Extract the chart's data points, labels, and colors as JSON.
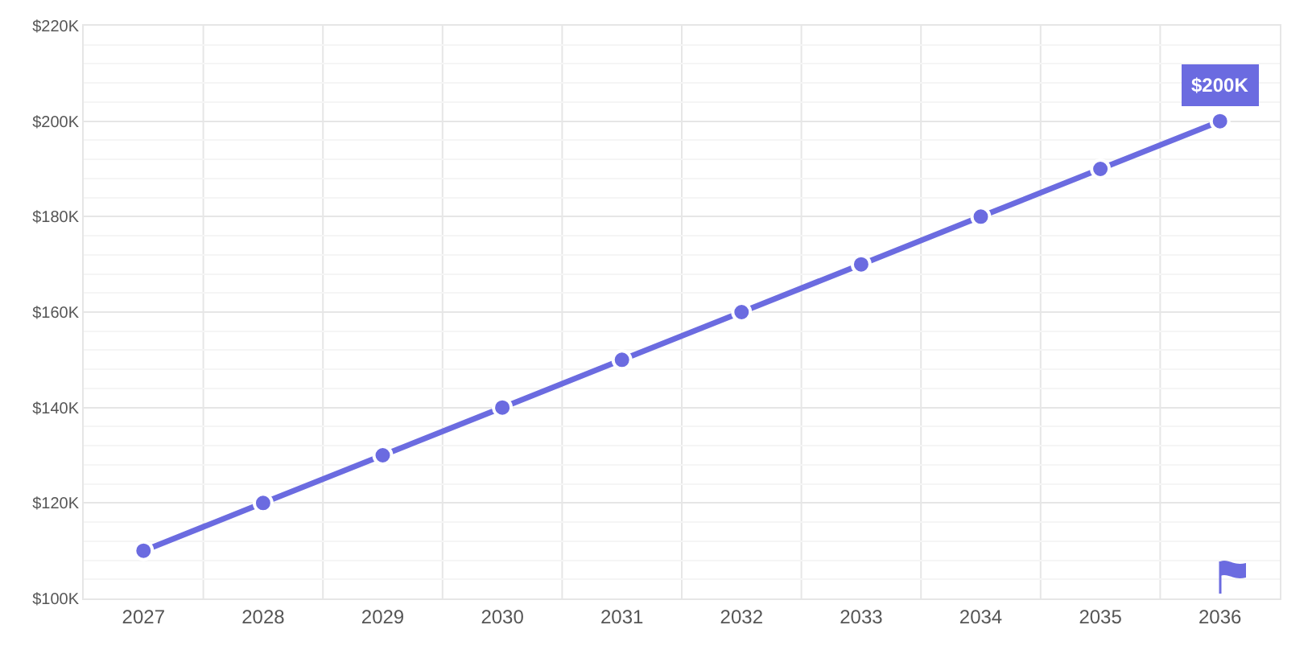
{
  "chart_data": {
    "type": "line",
    "categories": [
      "2027",
      "2028",
      "2029",
      "2030",
      "2031",
      "2032",
      "2033",
      "2034",
      "2035",
      "2036"
    ],
    "series": [
      {
        "color": "#6b6be0",
        "values": [
          110000,
          120000,
          130000,
          140000,
          150000,
          160000,
          170000,
          180000,
          190000,
          200000
        ]
      }
    ],
    "ylim": [
      100000,
      220000
    ],
    "yticks": [
      {
        "value": 100000,
        "label": "$100K"
      },
      {
        "value": 120000,
        "label": "$120K"
      },
      {
        "value": 140000,
        "label": "$140K"
      },
      {
        "value": 160000,
        "label": "$160K"
      },
      {
        "value": 180000,
        "label": "$180K"
      },
      {
        "value": 200000,
        "label": "$200K"
      },
      {
        "value": 220000,
        "label": "$220K"
      }
    ],
    "annotations": [
      {
        "text": "$200K",
        "x": "2036",
        "y": 200000
      }
    ],
    "grid": true,
    "marker": "circle",
    "line_style": "solid"
  }
}
